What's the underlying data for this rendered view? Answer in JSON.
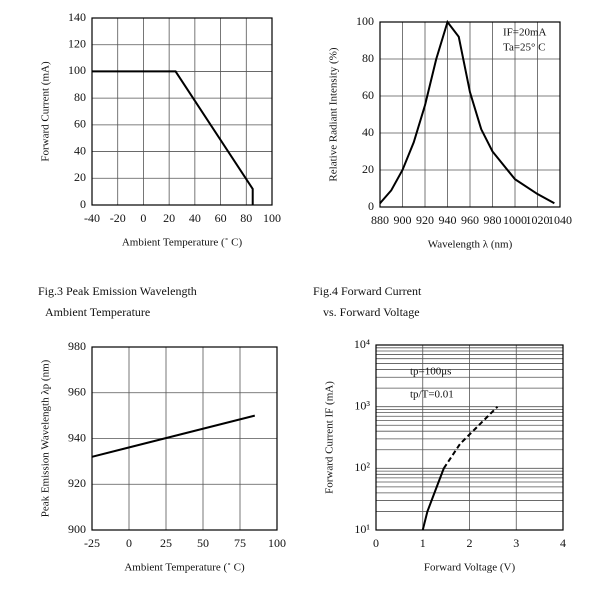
{
  "chart_data": [
    {
      "type": "line",
      "x_label": "Ambient Temperature (˚ C)",
      "y_label": "Forward Current (mA)",
      "x": [
        -40,
        25,
        85,
        85
      ],
      "series": [
        {
          "color": "#000000",
          "values": [
            100,
            100,
            12,
            0
          ]
        }
      ],
      "xlim": [
        -40,
        100
      ],
      "xticks": [
        -40,
        -20,
        0,
        20,
        40,
        60,
        80,
        100
      ],
      "ylim": [
        0,
        140
      ],
      "yticks": [
        0,
        20,
        40,
        60,
        80,
        100,
        120,
        140
      ],
      "grid": true
    },
    {
      "type": "line",
      "x_label": "Wavelength λ (nm)",
      "y_label": "Relative Radiant Intensity (%)",
      "annotations": [
        "IF=20mA",
        "Ta=25° C"
      ],
      "x": [
        880,
        890,
        900,
        910,
        920,
        930,
        940,
        950,
        960,
        970,
        980,
        1000,
        1020,
        1035
      ],
      "series": [
        {
          "color": "#000000",
          "values": [
            2,
            9,
            20,
            35,
            55,
            80,
            100,
            92,
            62,
            42,
            30,
            15,
            7,
            2
          ]
        }
      ],
      "xlim": [
        880,
        1040
      ],
      "xticks": [
        880,
        900,
        920,
        940,
        960,
        980,
        1000,
        1020,
        1040
      ],
      "ylim": [
        0,
        100
      ],
      "yticks": [
        0,
        20,
        40,
        60,
        80,
        100
      ],
      "grid": true
    },
    {
      "type": "line",
      "title": "Fig.3    Peak Emission Wavelength",
      "subtitle": "Ambient Temperature",
      "x_label": "Ambient Temperature (˚ C)",
      "y_label": "Peak Emission Wavelength λp (nm)",
      "x": [
        -25,
        85
      ],
      "series": [
        {
          "color": "#000000",
          "values": [
            932,
            950
          ]
        }
      ],
      "xlim": [
        -25,
        100
      ],
      "xticks": [
        -25,
        0,
        25,
        50,
        75,
        100
      ],
      "ylim": [
        900,
        980
      ],
      "yticks": [
        900,
        920,
        940,
        960,
        980
      ],
      "grid": true
    },
    {
      "type": "line",
      "title": "Fig.4    Forward Current",
      "subtitle": "vs. Forward Voltage",
      "x_label": "Forward Voltage (V)",
      "y_label": "Forward Current IF (mA)",
      "annotations": [
        "tp=100μs",
        "tp/T=0.01"
      ],
      "x": [
        1.0,
        1.1,
        1.25,
        1.45,
        1.8,
        2.2,
        2.6
      ],
      "series": [
        {
          "color": "#000000",
          "dashed": false,
          "values": [
            10,
            20,
            40,
            100,
            null,
            null,
            null
          ]
        },
        {
          "color": "#000000",
          "dashed": true,
          "values": [
            null,
            null,
            null,
            100,
            250,
            500,
            1000
          ]
        }
      ],
      "xlim": [
        0,
        4
      ],
      "xticks": [
        0,
        1,
        2,
        3,
        4
      ],
      "ylim": [
        10,
        10000
      ],
      "log_y": true,
      "yticks": [
        {
          "value": 10,
          "label": "10¹"
        },
        {
          "value": 100,
          "label": "10²"
        },
        {
          "value": 1000,
          "label": "10³"
        },
        {
          "value": 10000,
          "label": "10⁴"
        }
      ],
      "grid": true
    }
  ]
}
